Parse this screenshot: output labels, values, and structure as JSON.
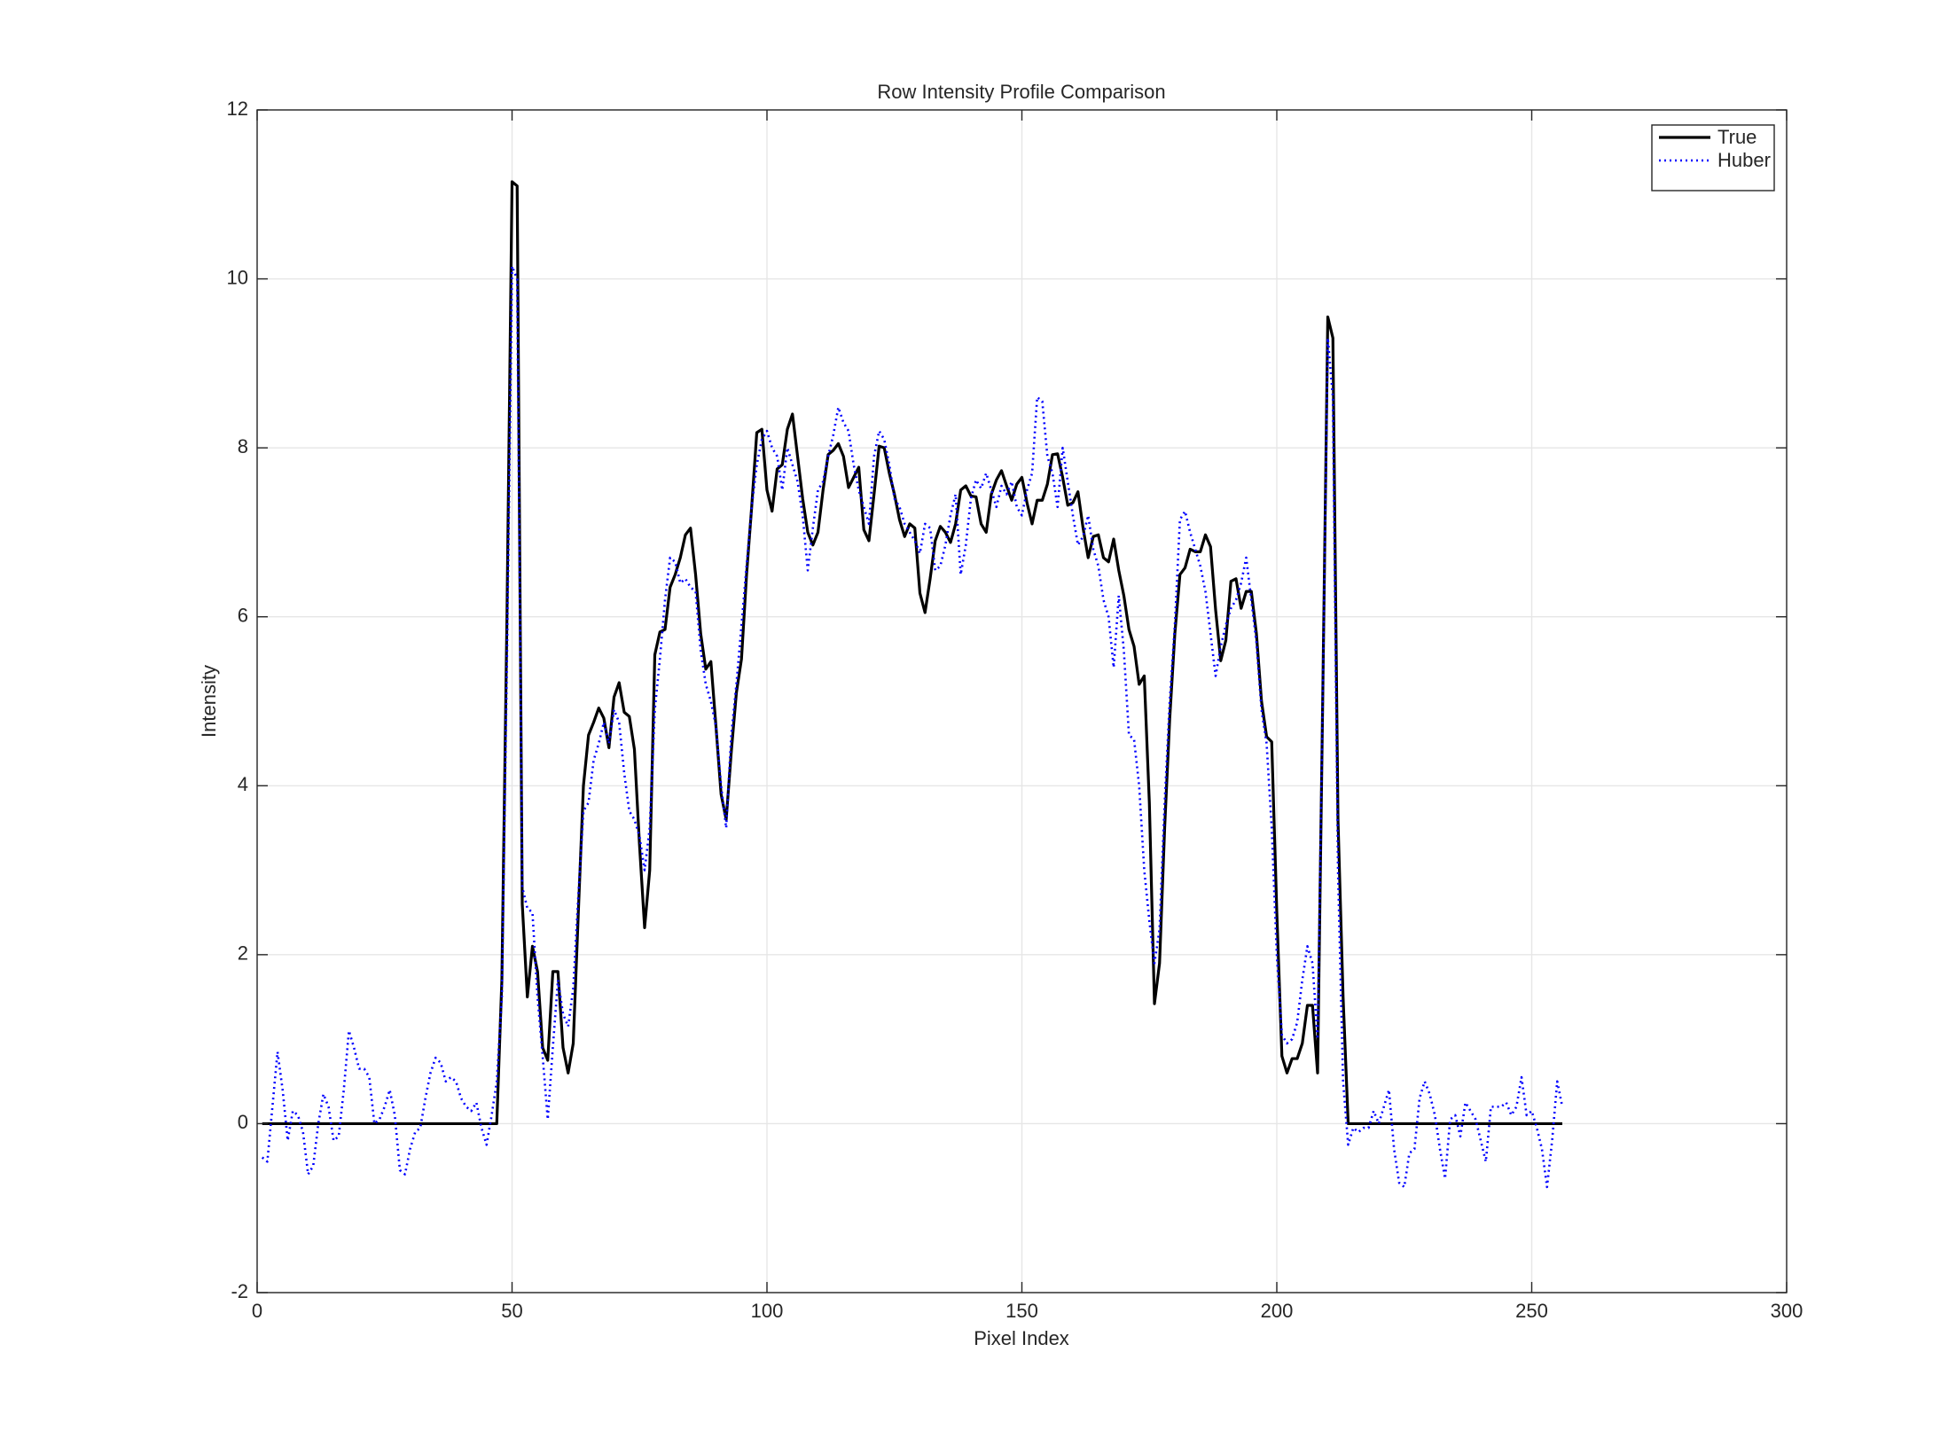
{
  "chart_data": {
    "type": "line",
    "title": "Row Intensity Profile Comparison",
    "x_label": "Pixel Index",
    "y_label": "Intensity",
    "xlim": [
      0,
      300
    ],
    "xticks": [
      0,
      50,
      100,
      150,
      200,
      250,
      300
    ],
    "ylim": [
      -2,
      12
    ],
    "yticks": [
      -2,
      0,
      2,
      4,
      6,
      8,
      10,
      12
    ],
    "grid": true,
    "legend": "top-right",
    "x": [
      1,
      2,
      3,
      4,
      5,
      6,
      7,
      8,
      9,
      10,
      11,
      12,
      13,
      14,
      15,
      16,
      17,
      18,
      19,
      20,
      21,
      22,
      23,
      24,
      25,
      26,
      27,
      28,
      29,
      30,
      31,
      32,
      33,
      34,
      35,
      36,
      37,
      38,
      39,
      40,
      41,
      42,
      43,
      44,
      45,
      46,
      47,
      48,
      49,
      50,
      51,
      52,
      53,
      54,
      55,
      56,
      57,
      58,
      59,
      60,
      61,
      62,
      63,
      64,
      65,
      66,
      67,
      68,
      69,
      70,
      71,
      72,
      73,
      74,
      75,
      76,
      77,
      78,
      79,
      80,
      81,
      82,
      83,
      84,
      85,
      86,
      87,
      88,
      89,
      90,
      91,
      92,
      93,
      94,
      95,
      96,
      97,
      98,
      99,
      100,
      101,
      102,
      103,
      104,
      105,
      106,
      107,
      108,
      109,
      110,
      111,
      112,
      113,
      114,
      115,
      116,
      117,
      118,
      119,
      120,
      121,
      122,
      123,
      124,
      125,
      126,
      127,
      128,
      129,
      130,
      131,
      132,
      133,
      134,
      135,
      136,
      137,
      138,
      139,
      140,
      141,
      142,
      143,
      144,
      145,
      146,
      147,
      148,
      149,
      150,
      151,
      152,
      153,
      154,
      155,
      156,
      157,
      158,
      159,
      160,
      161,
      162,
      163,
      164,
      165,
      166,
      167,
      168,
      169,
      170,
      171,
      172,
      173,
      174,
      175,
      176,
      177,
      178,
      179,
      180,
      181,
      182,
      183,
      184,
      185,
      186,
      187,
      188,
      189,
      190,
      191,
      192,
      193,
      194,
      195,
      196,
      197,
      198,
      199,
      200,
      201,
      202,
      203,
      204,
      205,
      206,
      207,
      208,
      209,
      210,
      211,
      212,
      213,
      214,
      215,
      216,
      217,
      218,
      219,
      220,
      221,
      222,
      223,
      224,
      225,
      226,
      227,
      228,
      229,
      230,
      231,
      232,
      233,
      234,
      235,
      236,
      237,
      238,
      239,
      240,
      241,
      242,
      243,
      244,
      245,
      246,
      247,
      248,
      249,
      250,
      251,
      252,
      253,
      254,
      255,
      256
    ],
    "series": [
      {
        "name": "True",
        "color": "#000000",
        "dash": "solid",
        "values": [
          0,
          0,
          0,
          0,
          0,
          0,
          0,
          0,
          0,
          0,
          0,
          0,
          0,
          0,
          0,
          0,
          0,
          0,
          0,
          0,
          0,
          0,
          0,
          0,
          0,
          0,
          0,
          0,
          0,
          0,
          0,
          0,
          0,
          0,
          0,
          0,
          0,
          0,
          0,
          0,
          0,
          0,
          0,
          0,
          0,
          0,
          0,
          1.7,
          6.0,
          11.15,
          11.1,
          2.6,
          1.5,
          2.1,
          1.8,
          0.9,
          0.75,
          1.8,
          1.8,
          0.9,
          0.6,
          0.95,
          2.5,
          4.0,
          4.6,
          4.75,
          4.92,
          4.8,
          4.45,
          5.05,
          5.22,
          4.87,
          4.82,
          4.43,
          3.3,
          2.32,
          3.0,
          5.55,
          5.82,
          5.85,
          6.35,
          6.5,
          6.7,
          6.97,
          7.05,
          6.5,
          5.8,
          5.38,
          5.47,
          4.7,
          3.9,
          3.6,
          4.4,
          5.1,
          5.5,
          6.5,
          7.3,
          8.18,
          8.22,
          7.5,
          7.25,
          7.75,
          7.8,
          8.22,
          8.4,
          7.9,
          7.4,
          7.0,
          6.85,
          7.0,
          7.5,
          7.92,
          7.97,
          8.05,
          7.9,
          7.53,
          7.65,
          7.77,
          7.03,
          6.9,
          7.45,
          8.02,
          8.0,
          7.7,
          7.45,
          7.15,
          6.95,
          7.1,
          7.05,
          6.28,
          6.05,
          6.45,
          6.9,
          7.07,
          7.0,
          6.88,
          7.1,
          7.5,
          7.55,
          7.43,
          7.42,
          7.1,
          7.0,
          7.45,
          7.62,
          7.73,
          7.55,
          7.38,
          7.57,
          7.65,
          7.35,
          7.1,
          7.38,
          7.38,
          7.57,
          7.92,
          7.93,
          7.65,
          7.32,
          7.35,
          7.48,
          7.05,
          6.7,
          6.95,
          6.97,
          6.7,
          6.65,
          6.92,
          6.55,
          6.25,
          5.85,
          5.65,
          5.2,
          5.3,
          3.8,
          1.42,
          1.9,
          3.5,
          4.8,
          5.8,
          6.5,
          6.58,
          6.8,
          6.77,
          6.77,
          6.97,
          6.83,
          6.08,
          5.48,
          5.72,
          6.42,
          6.45,
          6.1,
          6.3,
          6.3,
          5.8,
          5.0,
          4.58,
          4.52,
          2.5,
          0.8,
          0.6,
          0.77,
          0.77,
          0.95,
          1.4,
          1.4,
          0.6,
          5.0,
          9.55,
          9.3,
          3.6,
          1.5,
          0,
          0,
          0,
          0,
          0,
          0,
          0,
          0,
          0,
          0,
          0,
          0,
          0,
          0,
          0,
          0,
          0,
          0,
          0,
          0,
          0,
          0,
          0,
          0,
          0,
          0,
          0,
          0,
          0,
          0,
          0,
          0,
          0,
          0,
          0,
          0,
          0,
          0,
          0,
          0,
          0,
          0,
          0
        ]
      },
      {
        "name": "Huber",
        "color": "#0000ff",
        "dash": "dotted",
        "values": [
          -0.4,
          -0.45,
          0.2,
          0.85,
          0.4,
          -0.2,
          0.15,
          0.1,
          -0.1,
          -0.6,
          -0.5,
          0.0,
          0.35,
          0.2,
          -0.2,
          -0.15,
          0.4,
          1.1,
          0.9,
          0.65,
          0.65,
          0.55,
          0.0,
          0.05,
          0.2,
          0.4,
          0.1,
          -0.55,
          -0.6,
          -0.3,
          -0.1,
          -0.05,
          0.3,
          0.6,
          0.78,
          0.72,
          0.5,
          0.55,
          0.5,
          0.3,
          0.2,
          0.15,
          0.25,
          -0.05,
          -0.25,
          0.1,
          0.5,
          1.5,
          5.5,
          10.15,
          10.0,
          2.8,
          2.55,
          2.5,
          1.5,
          0.8,
          0.05,
          0.9,
          1.7,
          1.3,
          1.15,
          1.6,
          2.7,
          3.7,
          3.8,
          4.3,
          4.5,
          4.75,
          4.5,
          4.9,
          4.75,
          4.15,
          3.7,
          3.6,
          3.4,
          3.0,
          3.5,
          4.9,
          5.5,
          6.2,
          6.7,
          6.65,
          6.4,
          6.45,
          6.35,
          6.3,
          5.6,
          5.2,
          5.0,
          4.7,
          4.0,
          3.5,
          4.6,
          5.2,
          5.9,
          6.6,
          7.3,
          7.8,
          8.1,
          8.2,
          8.0,
          7.9,
          7.5,
          8.0,
          7.8,
          7.6,
          7.2,
          6.55,
          7.05,
          7.5,
          7.6,
          7.9,
          8.15,
          8.48,
          8.3,
          8.2,
          7.8,
          7.5,
          7.3,
          7.1,
          7.9,
          8.2,
          8.1,
          7.8,
          7.4,
          7.3,
          7.1,
          7.0,
          6.9,
          6.75,
          7.1,
          7.05,
          6.55,
          6.6,
          6.85,
          7.2,
          7.45,
          6.5,
          6.85,
          7.4,
          7.62,
          7.52,
          7.7,
          7.5,
          7.3,
          7.55,
          7.45,
          7.6,
          7.3,
          7.2,
          7.5,
          7.7,
          8.6,
          8.55,
          7.9,
          7.7,
          7.3,
          8.0,
          7.6,
          7.2,
          6.85,
          6.95,
          7.2,
          6.8,
          6.6,
          6.2,
          6.0,
          5.4,
          6.25,
          5.6,
          4.6,
          4.55,
          4.0,
          3.0,
          2.4,
          1.9,
          2.3,
          3.8,
          5.0,
          5.9,
          7.15,
          7.25,
          7.0,
          6.8,
          6.6,
          6.3,
          5.8,
          5.3,
          5.65,
          5.9,
          6.1,
          6.2,
          6.4,
          6.7,
          6.2,
          5.7,
          4.9,
          4.5,
          3.5,
          2.0,
          1.05,
          0.95,
          1.0,
          1.2,
          1.7,
          2.1,
          1.9,
          1.0,
          5.0,
          9.3,
          8.6,
          3.0,
          0.5,
          -0.25,
          -0.05,
          -0.1,
          -0.05,
          -0.05,
          0.15,
          0.0,
          0.2,
          0.4,
          -0.3,
          -0.7,
          -0.75,
          -0.35,
          -0.3,
          0.3,
          0.5,
          0.35,
          0.1,
          -0.3,
          -0.65,
          0.05,
          0.1,
          -0.15,
          0.25,
          0.15,
          0.05,
          -0.2,
          -0.45,
          0.2,
          0.2,
          0.2,
          0.25,
          0.1,
          0.2,
          0.55,
          0.1,
          0.15,
          -0.05,
          -0.3,
          -0.75,
          -0.2,
          0.5,
          0.2
        ]
      }
    ]
  }
}
